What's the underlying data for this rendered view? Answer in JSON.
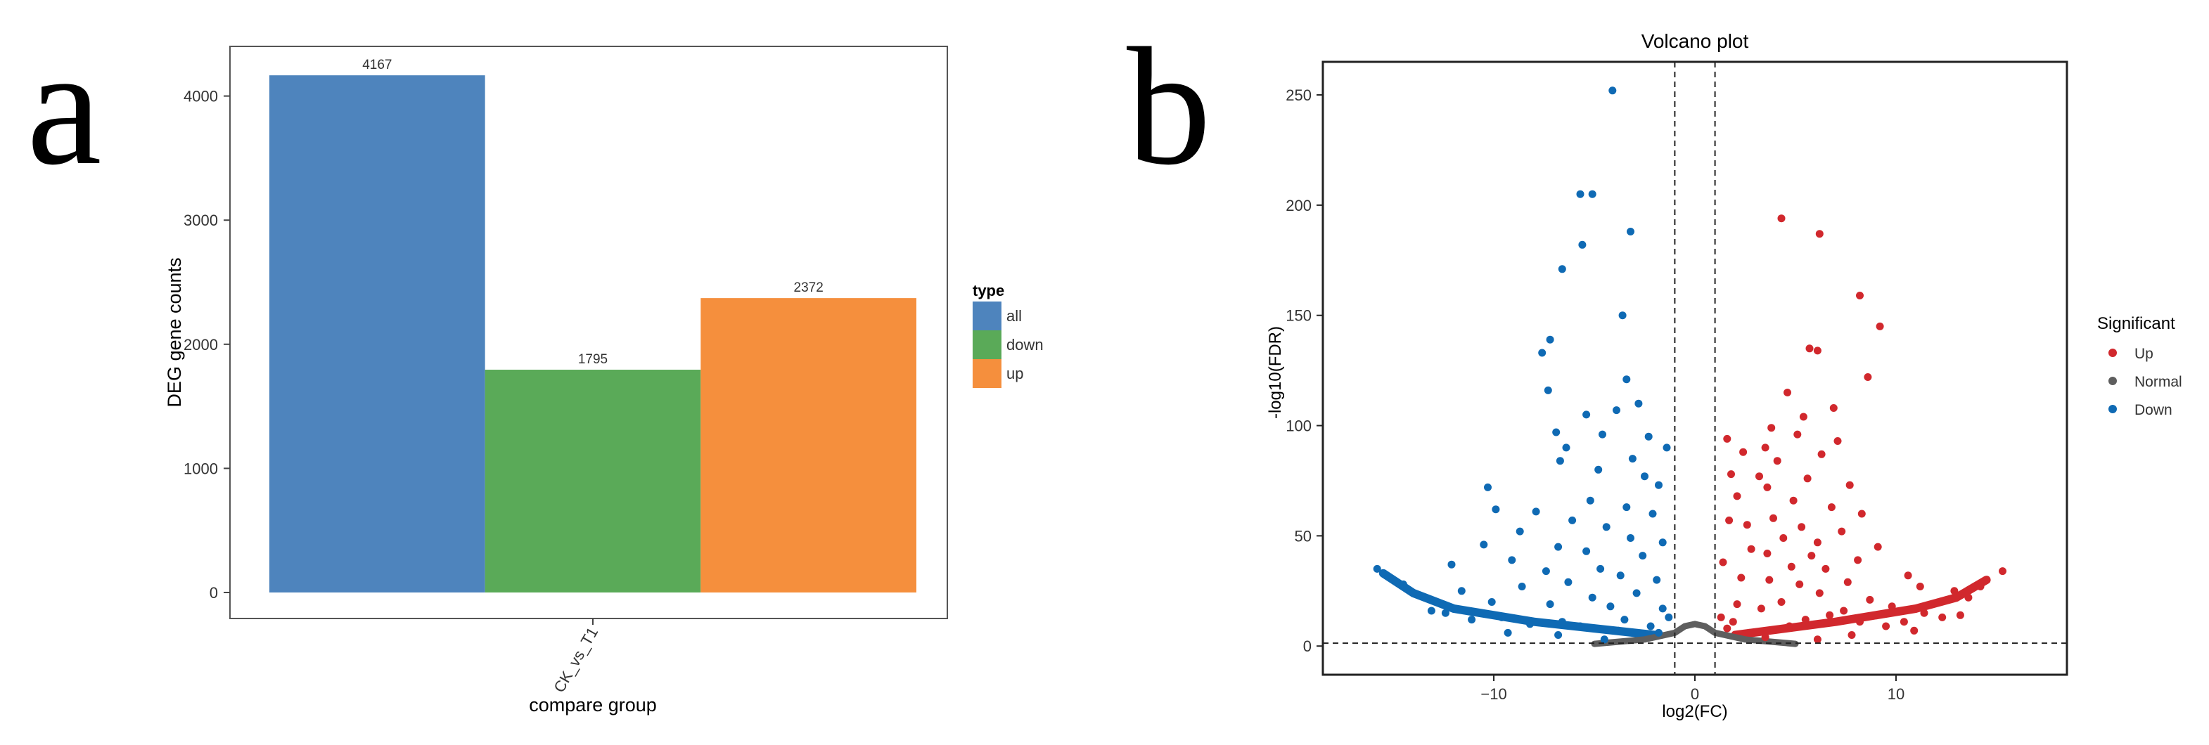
{
  "panels": {
    "a": {
      "letter": "a"
    },
    "b": {
      "letter": "b"
    }
  },
  "chart_data": [
    {
      "id": "a",
      "type": "bar",
      "title": "",
      "xlabel": "compare group",
      "ylabel": "DEG gene counts",
      "categories": [
        "CK_vs_T1"
      ],
      "ylim": [
        0,
        4400
      ],
      "yticks": [
        0,
        1000,
        2000,
        3000,
        4000
      ],
      "series": [
        {
          "name": "all",
          "values": [
            4167
          ],
          "color": "#4e84bd"
        },
        {
          "name": "down",
          "values": [
            1795
          ],
          "color": "#5aaa58"
        },
        {
          "name": "up",
          "values": [
            2372
          ],
          "color": "#f58f3d"
        }
      ],
      "legend": {
        "title": "type",
        "position": "right"
      },
      "grid": false
    },
    {
      "id": "b",
      "type": "scatter",
      "title": "Volcano plot",
      "xlabel": "log2(FC)",
      "ylabel": "-log10(FDR)",
      "xlim": [
        -18.5,
        18.5
      ],
      "ylim": [
        -13,
        265
      ],
      "xticks": [
        -10,
        0,
        10
      ],
      "yticks": [
        0,
        50,
        100,
        150,
        200,
        250
      ],
      "thresholds": {
        "log2fc": [
          -1,
          1
        ],
        "neg_log10_fdr": 1.3
      },
      "legend": {
        "title": "Significant",
        "position": "right"
      },
      "grid": false,
      "series": [
        {
          "name": "Up",
          "color": "#d1282d",
          "points": [
            [
              4.3,
              194
            ],
            [
              6.2,
              187
            ],
            [
              8.2,
              159
            ],
            [
              9.2,
              145
            ],
            [
              5.7,
              135
            ],
            [
              6.1,
              134
            ],
            [
              8.6,
              122
            ],
            [
              4.6,
              115
            ],
            [
              6.9,
              108
            ],
            [
              5.4,
              104
            ],
            [
              3.8,
              99
            ],
            [
              5.1,
              96
            ],
            [
              7.1,
              93
            ],
            [
              1.6,
              94
            ],
            [
              3.5,
              90
            ],
            [
              2.4,
              88
            ],
            [
              6.3,
              87
            ],
            [
              4.1,
              84
            ],
            [
              1.8,
              78
            ],
            [
              3.2,
              77
            ],
            [
              5.6,
              76
            ],
            [
              7.7,
              73
            ],
            [
              3.6,
              72
            ],
            [
              2.1,
              68
            ],
            [
              4.9,
              66
            ],
            [
              6.8,
              63
            ],
            [
              8.3,
              60
            ],
            [
              3.9,
              58
            ],
            [
              1.7,
              57
            ],
            [
              2.6,
              55
            ],
            [
              5.3,
              54
            ],
            [
              7.3,
              52
            ],
            [
              4.4,
              49
            ],
            [
              6.1,
              47
            ],
            [
              9.1,
              45
            ],
            [
              2.8,
              44
            ],
            [
              3.6,
              42
            ],
            [
              5.8,
              41
            ],
            [
              8.1,
              39
            ],
            [
              1.4,
              38
            ],
            [
              4.8,
              36
            ],
            [
              6.5,
              35
            ],
            [
              10.6,
              32
            ],
            [
              2.3,
              31
            ],
            [
              3.7,
              30
            ],
            [
              7.6,
              29
            ],
            [
              11.2,
              27
            ],
            [
              12.9,
              25
            ],
            [
              5.2,
              28
            ],
            [
              6.2,
              24
            ],
            [
              13.6,
              22
            ],
            [
              8.7,
              21
            ],
            [
              4.3,
              20
            ],
            [
              2.1,
              19
            ],
            [
              9.8,
              18
            ],
            [
              3.3,
              17
            ],
            [
              11.4,
              15
            ],
            [
              12.3,
              13
            ],
            [
              15.3,
              34
            ],
            [
              14.5,
              30
            ],
            [
              14.2,
              27
            ],
            [
              1.3,
              13
            ],
            [
              1.6,
              8
            ],
            [
              2.7,
              6
            ],
            [
              3.5,
              4
            ],
            [
              1.9,
              11
            ],
            [
              4.7,
              9
            ],
            [
              5.5,
              12
            ],
            [
              6.7,
              14
            ],
            [
              7.4,
              16
            ],
            [
              8.2,
              11
            ],
            [
              9.5,
              9
            ],
            [
              10.4,
              11
            ],
            [
              13.2,
              14
            ],
            [
              10.9,
              7
            ],
            [
              7.8,
              5
            ],
            [
              6.1,
              3
            ]
          ]
        },
        {
          "name": "Down",
          "color": "#0f6ab4",
          "points": [
            [
              -4.1,
              252
            ],
            [
              -5.7,
              205
            ],
            [
              -5.1,
              205
            ],
            [
              -3.2,
              188
            ],
            [
              -5.6,
              182
            ],
            [
              -6.6,
              171
            ],
            [
              -3.6,
              150
            ],
            [
              -7.2,
              139
            ],
            [
              -7.6,
              133
            ],
            [
              -3.4,
              121
            ],
            [
              -7.3,
              116
            ],
            [
              -2.8,
              110
            ],
            [
              -3.9,
              107
            ],
            [
              -5.4,
              105
            ],
            [
              -6.9,
              97
            ],
            [
              -4.6,
              96
            ],
            [
              -2.3,
              95
            ],
            [
              -6.4,
              90
            ],
            [
              -1.4,
              90
            ],
            [
              -6.7,
              84
            ],
            [
              -3.1,
              85
            ],
            [
              -4.8,
              80
            ],
            [
              -2.5,
              77
            ],
            [
              -1.8,
              73
            ],
            [
              -10.3,
              72
            ],
            [
              -9.9,
              62
            ],
            [
              -5.2,
              66
            ],
            [
              -3.4,
              63
            ],
            [
              -7.9,
              61
            ],
            [
              -2.1,
              60
            ],
            [
              -6.1,
              57
            ],
            [
              -4.4,
              54
            ],
            [
              -8.7,
              52
            ],
            [
              -3.2,
              49
            ],
            [
              -1.6,
              47
            ],
            [
              -10.5,
              46
            ],
            [
              -6.8,
              45
            ],
            [
              -5.4,
              43
            ],
            [
              -2.6,
              41
            ],
            [
              -9.1,
              39
            ],
            [
              -12.1,
              37
            ],
            [
              -4.7,
              35
            ],
            [
              -7.4,
              34
            ],
            [
              -3.7,
              32
            ],
            [
              -1.9,
              30
            ],
            [
              -6.3,
              29
            ],
            [
              -8.6,
              27
            ],
            [
              -11.6,
              25
            ],
            [
              -2.9,
              24
            ],
            [
              -5.1,
              22
            ],
            [
              -10.1,
              20
            ],
            [
              -7.2,
              19
            ],
            [
              -4.2,
              18
            ],
            [
              -1.6,
              17
            ],
            [
              -12.4,
              15
            ],
            [
              -9.6,
              13
            ],
            [
              -3.5,
              12
            ],
            [
              -6.6,
              11
            ],
            [
              -15.8,
              35
            ],
            [
              -14.5,
              28
            ],
            [
              -13.7,
              23
            ],
            [
              -1.3,
              13
            ],
            [
              -2.2,
              9
            ],
            [
              -1.8,
              6
            ],
            [
              -3.8,
              7
            ],
            [
              -5.7,
              9
            ],
            [
              -8.2,
              10
            ],
            [
              -11.1,
              12
            ],
            [
              -13.1,
              16
            ],
            [
              -9.3,
              6
            ],
            [
              -6.8,
              5
            ],
            [
              -4.5,
              3
            ]
          ]
        }
      ],
      "curves": {
        "Up": [
          [
            2.0,
            5
          ],
          [
            7.0,
            11
          ],
          [
            11.0,
            17
          ],
          [
            13.0,
            22
          ],
          [
            14.5,
            30
          ]
        ],
        "Down": [
          [
            -2.0,
            5
          ],
          [
            -8.0,
            11
          ],
          [
            -12.0,
            17
          ],
          [
            -14.0,
            24
          ],
          [
            -15.5,
            33
          ]
        ],
        "Normal": [
          [
            -5.0,
            1
          ],
          [
            -2.5,
            3
          ],
          [
            -1.0,
            6
          ],
          [
            -0.5,
            9
          ],
          [
            0,
            10
          ],
          [
            0.5,
            9
          ],
          [
            1.0,
            6
          ],
          [
            2.5,
            3
          ],
          [
            5.0,
            1
          ]
        ]
      }
    }
  ]
}
